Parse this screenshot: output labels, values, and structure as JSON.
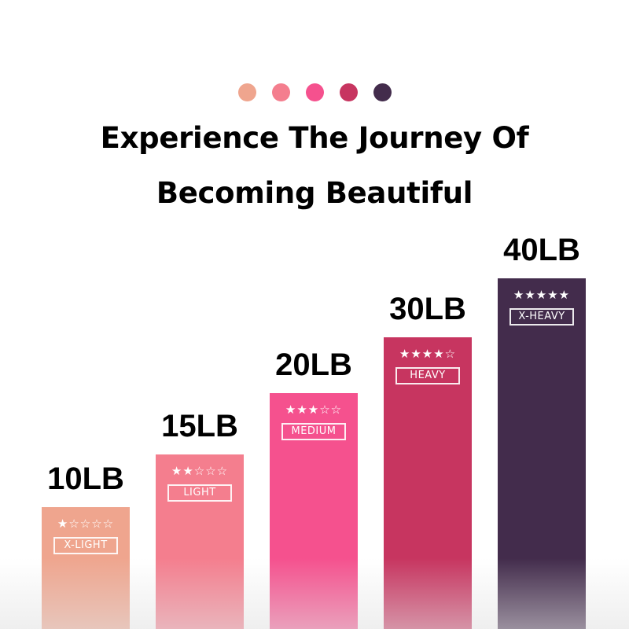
{
  "header": {
    "dot_colors": [
      "#EFA58E",
      "#F47E8E",
      "#F5518E",
      "#C73560",
      "#432C4C"
    ],
    "title_line1": "Experience The Journey Of",
    "title_line2": "Becoming Beautiful"
  },
  "bands": [
    {
      "weight": "10LB",
      "stars": "★☆☆☆☆",
      "rating": 1,
      "level": "X-LIGHT",
      "color": "#EFA58E"
    },
    {
      "weight": "15LB",
      "stars": "★★☆☆☆",
      "rating": 2,
      "level": "LIGHT",
      "color": "#F47E8E"
    },
    {
      "weight": "20LB",
      "stars": "★★★☆☆",
      "rating": 3,
      "level": "MEDIUM",
      "color": "#F5518E"
    },
    {
      "weight": "30LB",
      "stars": "★★★★☆",
      "rating": 4,
      "level": "HEAVY",
      "color": "#C73560"
    },
    {
      "weight": "40LB",
      "stars": "★★★★★",
      "rating": 5,
      "level": "X-HEAVY",
      "color": "#432C4C"
    }
  ]
}
